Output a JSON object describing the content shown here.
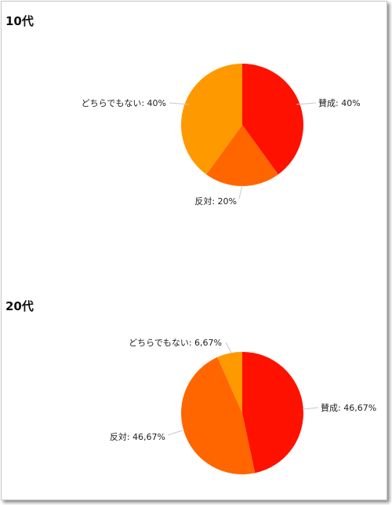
{
  "chart_data": [
    {
      "type": "pie",
      "title": "10代",
      "slices": [
        {
          "label": "賛成",
          "value": 40,
          "display": "40%",
          "color": "#ff1100"
        },
        {
          "label": "反対",
          "value": 20,
          "display": "20%",
          "color": "#ff6600"
        },
        {
          "label": "どちらでもない",
          "value": 40,
          "display": "40%",
          "color": "#ff9900"
        }
      ]
    },
    {
      "type": "pie",
      "title": "20代",
      "slices": [
        {
          "label": "賛成",
          "value": 46.67,
          "display": "46,67%",
          "color": "#ff1100"
        },
        {
          "label": "反対",
          "value": 46.67,
          "display": "46,67%",
          "color": "#ff6600"
        },
        {
          "label": "どちらでもない",
          "value": 6.67,
          "display": "6,67%",
          "color": "#ff9900"
        }
      ]
    }
  ]
}
